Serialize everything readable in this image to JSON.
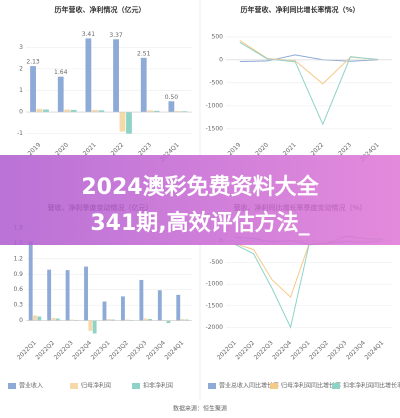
{
  "chart_data": [
    {
      "type": "bar",
      "title": "历年营收、净利情况（亿元）",
      "categories": [
        "2019",
        "2020",
        "2021",
        "2022",
        "2023",
        "2024Q1"
      ],
      "series": [
        {
          "name": "营业总收入",
          "color": "#8eaad6",
          "values": [
            2.13,
            1.64,
            3.41,
            3.37,
            2.51,
            0.5
          ],
          "value_labels": [
            "2.13",
            "1.64",
            "3.41",
            "3.37",
            "2.51",
            "0.50"
          ]
        },
        {
          "name": "归母净利润",
          "color": "#f5d9a8",
          "values": [
            0.15,
            0.12,
            0.1,
            -0.9,
            0.08,
            0.05
          ]
        },
        {
          "name": "扣非净利润",
          "color": "#8fd3c8",
          "values": [
            0.12,
            0.1,
            0.08,
            -1.0,
            0.06,
            0.04
          ]
        }
      ],
      "ylim": [
        -1.2,
        3.8
      ],
      "yticks": [
        -1,
        0,
        1,
        2,
        3
      ],
      "grid": true
    },
    {
      "type": "line",
      "title": "历年营收、净利同比增长率情况（%）",
      "categories": [
        "2019",
        "2020",
        "2021",
        "2022",
        "2023",
        "2024Q1"
      ],
      "series": [
        {
          "name": "营业总收入同比增长率",
          "color": "#8eaad6",
          "values": [
            -35.49,
            -23.13,
            107.87,
            2.13,
            -29.92,
            3.68
          ]
        },
        {
          "name": "归母净利润同比增长率",
          "color": "#f5c98a",
          "values": [
            420,
            30,
            -20,
            -520,
            60,
            10
          ]
        },
        {
          "name": "扣非净利润同比增长率",
          "color": "#8fd3c8",
          "values": [
            380,
            20,
            -40,
            -1400,
            70,
            5
          ]
        }
      ],
      "ylim": [
        -1700,
        650
      ],
      "yticks": [
        500,
        0,
        -500,
        -1000,
        -1500
      ],
      "grid": true
    },
    {
      "type": "bar",
      "title": "营收、净利季度变动情况（亿元）",
      "categories": [
        "2022Q1",
        "2022Q2",
        "2022Q3",
        "2022Q4",
        "2023Q1",
        "2023Q2",
        "2023Q3",
        "2023Q4",
        "2024Q1"
      ],
      "series": [
        {
          "name": "营业收入",
          "color": "#8eaad6",
          "values": [
            1.54,
            0.99,
            0.98,
            1.05,
            0.37,
            0.47,
            0.79,
            0.59,
            0.5
          ]
        },
        {
          "name": "归母净利润",
          "color": "#f5d9a8",
          "values": [
            0.1,
            0.05,
            0.02,
            -0.2,
            0.03,
            0.02,
            0.04,
            0.01,
            0.03
          ]
        },
        {
          "name": "扣非净利润",
          "color": "#8fd3c8",
          "values": [
            0.08,
            0.04,
            0.01,
            -0.25,
            0.02,
            0.01,
            0.03,
            -0.05,
            0.02
          ]
        }
      ],
      "ylim": [
        -0.3,
        1.8
      ],
      "yticks": [
        0,
        0.3,
        0.6,
        0.9,
        1.2,
        1.5,
        1.8
      ],
      "grid": true,
      "legend": "bottom"
    },
    {
      "type": "line",
      "title": "营收、净利同比增长率季度变动情况（%）",
      "categories": [
        "2022Q1",
        "2022Q2",
        "2022Q3",
        "2022Q4",
        "2023Q1",
        "2023Q2",
        "2023Q3",
        "2023Q4",
        "2024Q1"
      ],
      "series": [
        {
          "name": "营业总收入同比增长率",
          "color": "#8eaad6",
          "values": [
            80,
            60,
            -20,
            10,
            -75,
            -52,
            -19,
            -44,
            3.68
          ]
        },
        {
          "name": "归母净利润同比增长率",
          "color": "#f5c98a",
          "values": [
            -60,
            -200,
            -900,
            -1300,
            -70,
            -40,
            100,
            50,
            30
          ]
        },
        {
          "name": "扣非净利润同比增长率",
          "color": "#8fd3c8",
          "values": [
            -80,
            -300,
            -1100,
            -2000,
            -90,
            -60,
            120,
            60,
            40
          ]
        }
      ],
      "ylim": [
        -2200,
        300
      ],
      "yticks": [
        0,
        -500,
        -1000,
        -1500,
        -2000
      ],
      "grid": true,
      "legend": "bottom"
    }
  ],
  "banner": {
    "lines": [
      "2024澳彩免费资料大全",
      "341期,高效评估方法_"
    ]
  },
  "footer": "数据来源：恒生聚源"
}
